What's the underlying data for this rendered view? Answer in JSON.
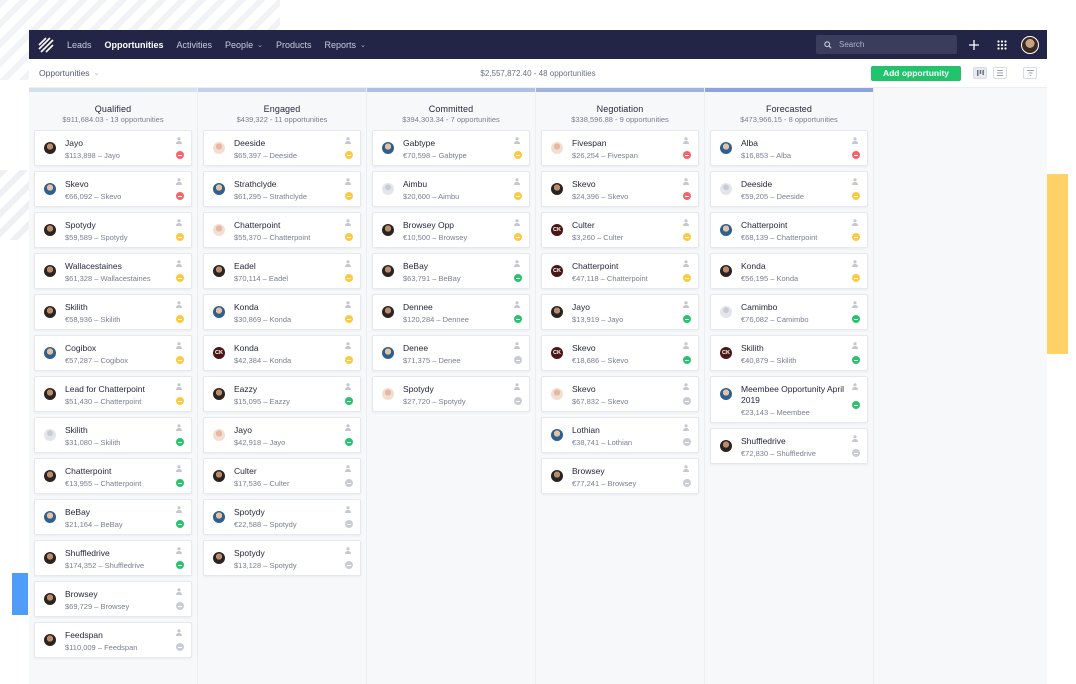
{
  "nav": {
    "items": [
      {
        "label": "Leads",
        "active": false,
        "dropdown": false
      },
      {
        "label": "Opportunities",
        "active": true,
        "dropdown": false
      },
      {
        "label": "Activities",
        "active": false,
        "dropdown": false
      },
      {
        "label": "People",
        "active": false,
        "dropdown": true
      },
      {
        "label": "Products",
        "active": false,
        "dropdown": false
      },
      {
        "label": "Reports",
        "active": false,
        "dropdown": true
      }
    ],
    "search_placeholder": "Search",
    "icons": [
      "search-icon",
      "plus-icon",
      "apps-grid-icon",
      "user-avatar"
    ]
  },
  "subbar": {
    "pipeline_label": "Opportunities",
    "summary": "$2,557,872.40 - 48 opportunities",
    "add_button": "Add opportunity"
  },
  "colors": {
    "accent_green": "#21c36b",
    "topbar": "#232546",
    "status": {
      "red": "#f4646a",
      "yellow": "#ffc93f",
      "green": "#27c46d",
      "grey": "#c9ccd4"
    }
  },
  "columns": [
    {
      "title": "Qualified",
      "summary": "$911,684.03 - 13 opportunities",
      "bar": "#d7e0f1",
      "cards": [
        {
          "title": "Jayo",
          "value": "$113,898",
          "company": "Jayo",
          "avatar": "dark",
          "status": "red"
        },
        {
          "title": "Skevo",
          "value": "€66,092",
          "company": "Skevo",
          "avatar": "blue",
          "status": "red"
        },
        {
          "title": "Spotydy",
          "value": "$59,589",
          "company": "Spotydy",
          "avatar": "dark",
          "status": "yellow"
        },
        {
          "title": "Wallacestaines",
          "value": "$61,328",
          "company": "Wallacestaines",
          "avatar": "dark",
          "status": "yellow"
        },
        {
          "title": "Skilith",
          "value": "€58,936",
          "company": "Skilith",
          "avatar": "dark",
          "status": "yellow"
        },
        {
          "title": "Cogibox",
          "value": "€57,287",
          "company": "Cogibox",
          "avatar": "blue",
          "status": "yellow"
        },
        {
          "title": "Lead for Chatterpoint",
          "value": "$51,430",
          "company": "Chatterpoint",
          "avatar": "dark",
          "status": "yellow"
        },
        {
          "title": "Skilith",
          "value": "$31,080",
          "company": "Skilith",
          "avatar": "grey",
          "status": "green"
        },
        {
          "title": "Chatterpoint",
          "value": "€13,955",
          "company": "Chatterpoint",
          "avatar": "dark",
          "status": "green"
        },
        {
          "title": "BeBay",
          "value": "$21,164",
          "company": "BeBay",
          "avatar": "blue",
          "status": "green"
        },
        {
          "title": "Shuffledrive",
          "value": "$174,352",
          "company": "Shuffledrive",
          "avatar": "dark",
          "status": "green"
        },
        {
          "title": "Browsey",
          "value": "$69,729",
          "company": "Browsey",
          "avatar": "dark",
          "status": "grey"
        },
        {
          "title": "Feedspan",
          "value": "$110,009",
          "company": "Feedspan",
          "avatar": "dark",
          "status": "grey"
        }
      ]
    },
    {
      "title": "Engaged",
      "summary": "$439,322 - 11 opportunities",
      "bar": "#c2d0ec",
      "cards": [
        {
          "title": "Deeside",
          "value": "$65,397",
          "company": "Deeside",
          "avatar": "light",
          "status": "yellow"
        },
        {
          "title": "Strathclyde",
          "value": "$61,295",
          "company": "Strathclyde",
          "avatar": "blue",
          "status": "yellow"
        },
        {
          "title": "Chatterpoint",
          "value": "$55,370",
          "company": "Chatterpoint",
          "avatar": "light",
          "status": "yellow"
        },
        {
          "title": "Eadel",
          "value": "$70,114",
          "company": "Eadel",
          "avatar": "dark",
          "status": "yellow"
        },
        {
          "title": "Konda",
          "value": "$30,869",
          "company": "Konda",
          "avatar": "blue",
          "status": "yellow"
        },
        {
          "title": "Konda",
          "value": "$42,384",
          "company": "Konda",
          "avatar": "ck",
          "status": "yellow"
        },
        {
          "title": "Eazzy",
          "value": "$15,095",
          "company": "Eazzy",
          "avatar": "dark",
          "status": "green"
        },
        {
          "title": "Jayo",
          "value": "$42,918",
          "company": "Jayo",
          "avatar": "light",
          "status": "green"
        },
        {
          "title": "Culter",
          "value": "$17,536",
          "company": "Culter",
          "avatar": "dark",
          "status": "grey"
        },
        {
          "title": "Spotydy",
          "value": "€22,588",
          "company": "Spotydy",
          "avatar": "blue",
          "status": "grey"
        },
        {
          "title": "Spotydy",
          "value": "$13,128",
          "company": "Spotydy",
          "avatar": "dark",
          "status": "grey"
        }
      ]
    },
    {
      "title": "Committed",
      "summary": "$394,303.34 - 7 opportunities",
      "bar": "#aec0e6",
      "cards": [
        {
          "title": "Gabtype",
          "value": "€70,598",
          "company": "Gabtype",
          "avatar": "blue",
          "status": "yellow"
        },
        {
          "title": "Aimbu",
          "value": "$20,600",
          "company": "Aimbu",
          "avatar": "grey",
          "status": "yellow"
        },
        {
          "title": "Browsey Opp",
          "value": "€10,500",
          "company": "Browsey",
          "avatar": "dark",
          "status": "yellow"
        },
        {
          "title": "BeBay",
          "value": "$63,791",
          "company": "BeBay",
          "avatar": "dark",
          "status": "green"
        },
        {
          "title": "Dennee",
          "value": "$120,284",
          "company": "Dennee",
          "avatar": "dark",
          "status": "green"
        },
        {
          "title": "Denee",
          "value": "$71,375",
          "company": "Denee",
          "avatar": "blue",
          "status": "grey"
        },
        {
          "title": "Spotydy",
          "value": "$27,720",
          "company": "Spotydy",
          "avatar": "light",
          "status": "grey"
        }
      ]
    },
    {
      "title": "Negotiation",
      "summary": "$338,596.88 - 9 opportunities",
      "bar": "#9fb2e2",
      "cards": [
        {
          "title": "Fivespan",
          "value": "$26,254",
          "company": "Fivespan",
          "avatar": "light",
          "status": "red"
        },
        {
          "title": "Skevo",
          "value": "$24,396",
          "company": "Skevo",
          "avatar": "dark",
          "status": "red"
        },
        {
          "title": "Culter",
          "value": "$3,260",
          "company": "Culter",
          "avatar": "ck",
          "status": "yellow"
        },
        {
          "title": "Chatterpoint",
          "value": "€47,118",
          "company": "Chatterpoint",
          "avatar": "ck",
          "status": "yellow"
        },
        {
          "title": "Jayo",
          "value": "$13,919",
          "company": "Jayo",
          "avatar": "dark",
          "status": "green"
        },
        {
          "title": "Skevo",
          "value": "€18,686",
          "company": "Skevo",
          "avatar": "ck",
          "status": "green"
        },
        {
          "title": "Skevo",
          "value": "$67,832",
          "company": "Skevo",
          "avatar": "light",
          "status": "grey"
        },
        {
          "title": "Lothian",
          "value": "€38,741",
          "company": "Lothian",
          "avatar": "blue",
          "status": "grey"
        },
        {
          "title": "Browsey",
          "value": "€77,241",
          "company": "Browsey",
          "avatar": "dark",
          "status": "grey"
        }
      ]
    },
    {
      "title": "Forecasted",
      "summary": "$473,966.15 - 8 opportunities",
      "bar": "#8ea3dd",
      "cards": [
        {
          "title": "Alba",
          "value": "$16,853",
          "company": "Alba",
          "avatar": "blue",
          "status": "red"
        },
        {
          "title": "Deeside",
          "value": "€59,205",
          "company": "Deeside",
          "avatar": "grey",
          "status": "yellow"
        },
        {
          "title": "Chatterpoint",
          "value": "€68,139",
          "company": "Chatterpoint",
          "avatar": "blue",
          "status": "yellow"
        },
        {
          "title": "Konda",
          "value": "€56,195",
          "company": "Konda",
          "avatar": "dark",
          "status": "yellow"
        },
        {
          "title": "Camimbo",
          "value": "€76,082",
          "company": "Camimbo",
          "avatar": "grey",
          "status": "green"
        },
        {
          "title": "Skilith",
          "value": "€40,879",
          "company": "Skilith",
          "avatar": "ck",
          "status": "green"
        },
        {
          "title": "Meembee Opportunity April 2019",
          "value": "€23,143",
          "company": "Meembee",
          "avatar": "blue",
          "status": "green",
          "tall": true
        },
        {
          "title": "Shuffledrive",
          "value": "€72,830",
          "company": "Shuffledrive",
          "avatar": "dark",
          "status": "grey"
        }
      ]
    }
  ]
}
